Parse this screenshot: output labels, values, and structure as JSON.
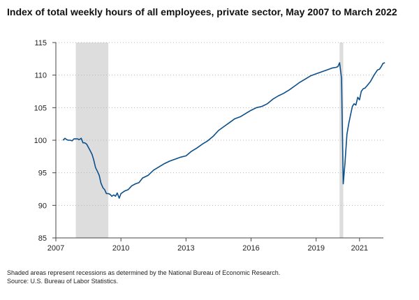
{
  "title": "Index of total weekly hours of all employees, private sector, May 2007 to March 2022",
  "notes": {
    "recession_note": "Shaded areas represent recessions as determined by the National Bureau of Economic Research.",
    "source": "Source: U.S. Bureau of Labor Statistics."
  },
  "colors": {
    "line": "#0b4f8a",
    "recession": "#dddddd",
    "grid": "#b5b5b5",
    "axis": "#444444"
  },
  "chart_data": {
    "type": "line",
    "title": "Index of total weekly hours of all employees, private sector, May 2007 to March 2022",
    "xlabel": "",
    "ylabel": "",
    "xlim": [
      2007.0,
      2022.1
    ],
    "ylim": [
      85,
      115
    ],
    "x_ticks": [
      2007,
      2010,
      2013,
      2016,
      2019,
      2021
    ],
    "x_tick_labels": [
      "2007",
      "2010",
      "2013",
      "2016",
      "2019",
      "2021"
    ],
    "y_ticks": [
      85,
      90,
      95,
      100,
      105,
      110,
      115
    ],
    "y_tick_labels": [
      "85",
      "90",
      "95",
      "100",
      "105",
      "110",
      "115"
    ],
    "grid": "horizontal dotted",
    "legend": "none",
    "recessions": [
      {
        "start": 2007.92,
        "end": 2009.42
      },
      {
        "start": 2020.08,
        "end": 2020.25
      }
    ],
    "series": [
      {
        "x": [
          2007.33,
          2007.42,
          2007.5,
          2007.58,
          2007.67,
          2007.75,
          2007.83,
          2007.92,
          2008.0,
          2008.08,
          2008.17,
          2008.25,
          2008.33,
          2008.42,
          2008.5,
          2008.58,
          2008.67,
          2008.75,
          2008.83,
          2008.92,
          2009.0,
          2009.08,
          2009.17,
          2009.25,
          2009.33,
          2009.42,
          2009.5,
          2009.58,
          2009.67,
          2009.75,
          2009.83,
          2009.92,
          2010.0,
          2010.17,
          2010.33,
          2010.5,
          2010.67,
          2010.83,
          2011.0,
          2011.25,
          2011.5,
          2011.75,
          2012.0,
          2012.25,
          2012.5,
          2012.75,
          2013.0,
          2013.25,
          2013.5,
          2013.75,
          2014.0,
          2014.25,
          2014.5,
          2014.75,
          2015.0,
          2015.25,
          2015.5,
          2015.75,
          2016.0,
          2016.25,
          2016.5,
          2016.75,
          2017.0,
          2017.25,
          2017.5,
          2017.75,
          2018.0,
          2018.25,
          2018.5,
          2018.75,
          2019.0,
          2019.25,
          2019.5,
          2019.75,
          2019.92,
          2020.0,
          2020.08,
          2020.17,
          2020.25,
          2020.33,
          2020.42,
          2020.5,
          2020.58,
          2020.67,
          2020.75,
          2020.83,
          2020.92,
          2021.0,
          2021.08,
          2021.17,
          2021.25,
          2021.33,
          2021.5,
          2021.67,
          2021.83,
          2021.92,
          2022.0,
          2022.08,
          2022.17
        ],
        "values": [
          100.0,
          100.3,
          100.1,
          100.0,
          100.0,
          99.9,
          100.2,
          100.2,
          100.2,
          100.1,
          100.3,
          99.6,
          99.6,
          99.4,
          98.9,
          98.4,
          97.8,
          96.9,
          95.8,
          95.2,
          94.6,
          93.4,
          92.7,
          92.4,
          91.8,
          91.8,
          91.7,
          91.4,
          91.6,
          91.4,
          91.9,
          91.1,
          91.8,
          92.2,
          92.4,
          93.0,
          93.3,
          93.5,
          94.2,
          94.6,
          95.4,
          95.9,
          96.4,
          96.8,
          97.1,
          97.4,
          97.6,
          98.3,
          98.8,
          99.4,
          99.9,
          100.6,
          101.5,
          102.1,
          102.7,
          103.3,
          103.6,
          104.1,
          104.6,
          105.0,
          105.2,
          105.6,
          106.3,
          106.8,
          107.2,
          107.7,
          108.3,
          108.9,
          109.4,
          109.9,
          110.2,
          110.5,
          110.8,
          111.1,
          111.2,
          111.3,
          111.9,
          109.5,
          93.3,
          96.5,
          100.9,
          102.5,
          103.8,
          105.2,
          105.6,
          105.4,
          106.6,
          106.2,
          107.5,
          107.9,
          108.0,
          108.3,
          109.0,
          110.0,
          110.8,
          110.9,
          111.3,
          111.8,
          111.9
        ]
      }
    ]
  }
}
